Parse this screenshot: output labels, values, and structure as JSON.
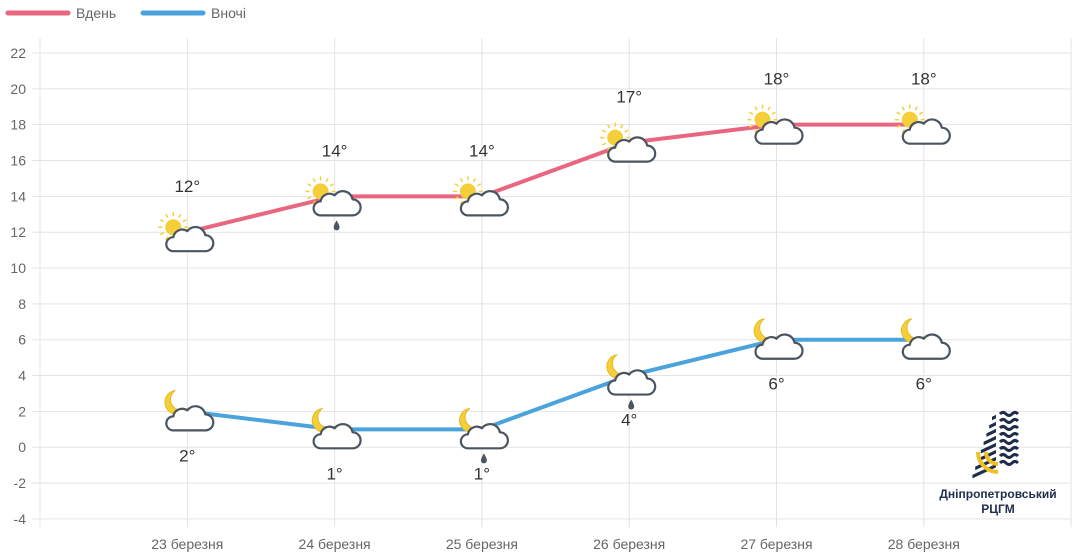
{
  "chart_data": {
    "type": "line",
    "categories": [
      "23 березня",
      "24 березня",
      "25 березня",
      "26 березня",
      "27 березня",
      "28 березня"
    ],
    "series": [
      {
        "name": "Вдень",
        "color": "#e8667f",
        "values": [
          12,
          14,
          14,
          17,
          18,
          18
        ],
        "labels": [
          "12°",
          "14°",
          "14°",
          "17°",
          "18°",
          "18°"
        ],
        "icons": [
          "sun-cloud",
          "sun-cloud-rain",
          "sun-cloud",
          "sun-cloud",
          "sun-cloud",
          "sun-cloud"
        ]
      },
      {
        "name": "Вночі",
        "color": "#4aa3db",
        "values": [
          2,
          1,
          1,
          4,
          6,
          6
        ],
        "labels": [
          "2°",
          "1°",
          "1°",
          "4°",
          "6°",
          "6°"
        ],
        "icons": [
          "moon-cloud",
          "moon-cloud",
          "moon-cloud-rain",
          "moon-cloud-rain",
          "moon-cloud",
          "moon-cloud"
        ]
      }
    ],
    "ylim": [
      -4,
      22
    ],
    "yticks": [
      "22",
      "20",
      "18",
      "16",
      "14",
      "12",
      "10",
      "8",
      "6",
      "4",
      "2",
      "0",
      "-2",
      "-4"
    ],
    "grid": true,
    "legend": "top-left"
  },
  "logo": {
    "line1": "Дніпропетровський",
    "line2": "РЦГМ"
  }
}
